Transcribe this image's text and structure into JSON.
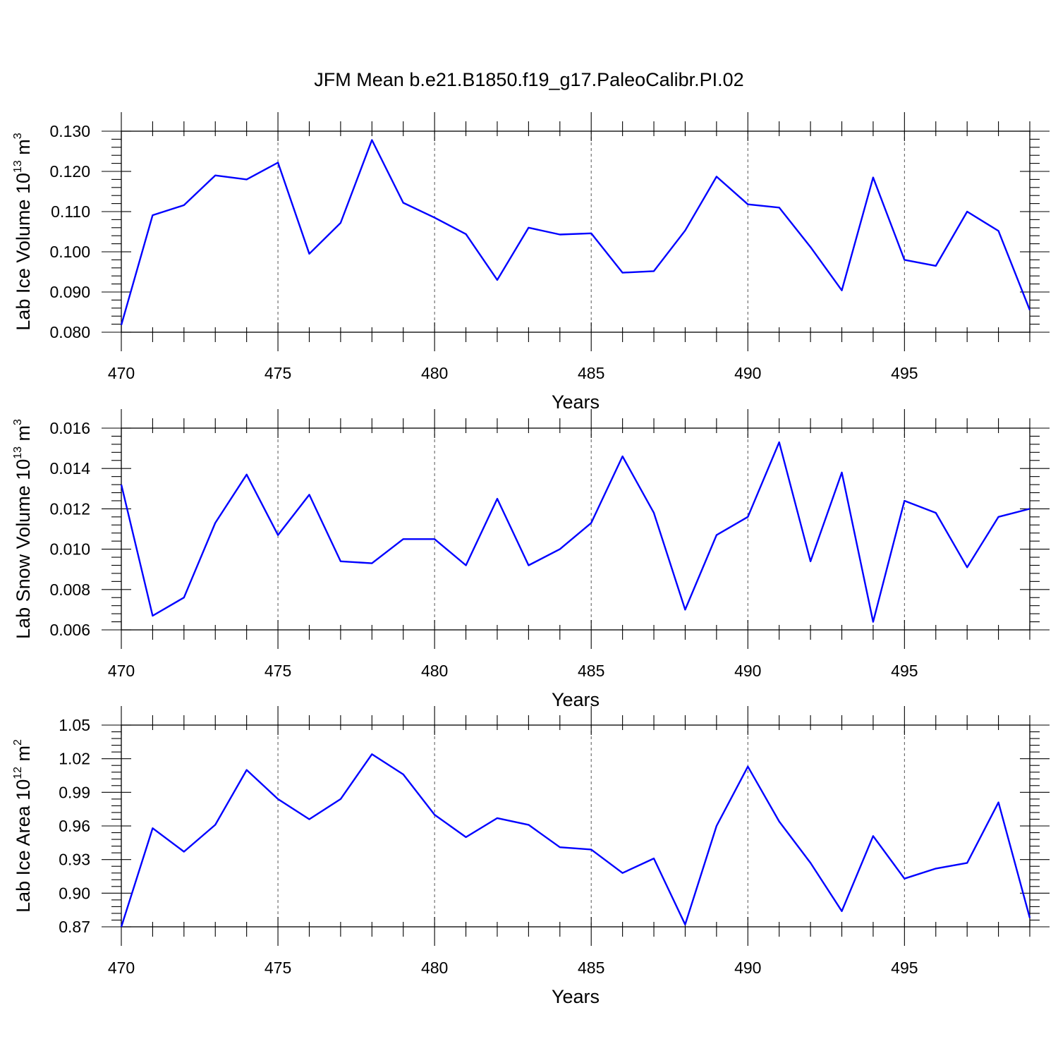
{
  "title": "JFM Mean b.e21.B1850.f19_g17.PaleoCalibr.PI.02",
  "colors": {
    "line": "#0000ff",
    "axes": "#000000",
    "grid": "#555555"
  },
  "chart_data": [
    {
      "type": "line",
      "ylabel": {
        "main": "Lab Ice Volume 10",
        "sup_exponent": "13",
        "unit": " m",
        "sup_unit": "3"
      },
      "xlabel": "Years",
      "xlim": [
        470,
        499
      ],
      "ylim": [
        0.08,
        0.13
      ],
      "xticks": [
        470,
        475,
        480,
        485,
        490,
        495
      ],
      "xtick_labels": [
        "470",
        "475",
        "480",
        "485",
        "490",
        "495"
      ],
      "yticks": [
        0.08,
        0.09,
        0.1,
        0.11,
        0.12,
        0.13
      ],
      "ytick_labels": [
        "0.080",
        "0.090",
        "0.100",
        "0.110",
        "0.120",
        "0.130"
      ],
      "grid": "vertical dashed at major x ticks",
      "x": [
        470,
        471,
        472,
        473,
        474,
        475,
        476,
        477,
        478,
        479,
        480,
        481,
        482,
        483,
        484,
        485,
        486,
        487,
        488,
        489,
        490,
        491,
        492,
        493,
        494,
        495,
        496,
        497,
        498,
        499
      ],
      "values": [
        0.0818,
        0.1091,
        0.1116,
        0.119,
        0.118,
        0.1222,
        0.0995,
        0.1072,
        0.1278,
        0.1122,
        0.1085,
        0.1044,
        0.093,
        0.106,
        0.1043,
        0.1046,
        0.0948,
        0.0952,
        0.1053,
        0.1187,
        0.1118,
        0.111,
        0.1012,
        0.0904,
        0.1185,
        0.098,
        0.0965,
        0.11,
        0.1052,
        0.0855
      ]
    },
    {
      "type": "line",
      "ylabel": {
        "main": "Lab Snow Volume 10",
        "sup_exponent": "13",
        "unit": " m",
        "sup_unit": "3"
      },
      "xlabel": "Years",
      "xlim": [
        470,
        499
      ],
      "ylim": [
        0.006,
        0.016
      ],
      "xticks": [
        470,
        475,
        480,
        485,
        490,
        495
      ],
      "xtick_labels": [
        "470",
        "475",
        "480",
        "485",
        "490",
        "495"
      ],
      "yticks": [
        0.006,
        0.008,
        0.01,
        0.012,
        0.014,
        0.016
      ],
      "ytick_labels": [
        "0.006",
        "0.008",
        "0.010",
        "0.012",
        "0.014",
        "0.016"
      ],
      "grid": "vertical dashed at major x ticks",
      "x": [
        470,
        471,
        472,
        473,
        474,
        475,
        476,
        477,
        478,
        479,
        480,
        481,
        482,
        483,
        484,
        485,
        486,
        487,
        488,
        489,
        490,
        491,
        492,
        493,
        494,
        495,
        496,
        497,
        498,
        499
      ],
      "values": [
        0.0132,
        0.0067,
        0.0076,
        0.0113,
        0.0137,
        0.0107,
        0.0127,
        0.0094,
        0.0093,
        0.0105,
        0.0105,
        0.0092,
        0.0125,
        0.0092,
        0.01,
        0.0113,
        0.0146,
        0.0118,
        0.007,
        0.0107,
        0.0116,
        0.0153,
        0.0094,
        0.0138,
        0.0064,
        0.0124,
        0.0118,
        0.0091,
        0.0116,
        0.012
      ]
    },
    {
      "type": "line",
      "ylabel": {
        "main": "Lab Ice Area 10",
        "sup_exponent": "12",
        "unit": " m",
        "sup_unit": "2"
      },
      "xlabel": "Years",
      "xlim": [
        470,
        499
      ],
      "ylim": [
        0.87,
        1.05
      ],
      "xticks": [
        470,
        475,
        480,
        485,
        490,
        495
      ],
      "xtick_labels": [
        "470",
        "475",
        "480",
        "485",
        "490",
        "495"
      ],
      "yticks": [
        0.87,
        0.9,
        0.93,
        0.96,
        0.99,
        1.02,
        1.05
      ],
      "ytick_labels": [
        "0.87",
        "0.90",
        "0.93",
        "0.96",
        "0.99",
        "1.02",
        "1.05"
      ],
      "grid": "vertical dashed at major x ticks",
      "x": [
        470,
        471,
        472,
        473,
        474,
        475,
        476,
        477,
        478,
        479,
        480,
        481,
        482,
        483,
        484,
        485,
        486,
        487,
        488,
        489,
        490,
        491,
        492,
        493,
        494,
        495,
        496,
        497,
        498,
        499
      ],
      "values": [
        0.87,
        0.958,
        0.937,
        0.961,
        1.01,
        0.984,
        0.966,
        0.984,
        1.024,
        1.006,
        0.97,
        0.95,
        0.967,
        0.961,
        0.941,
        0.939,
        0.918,
        0.931,
        0.872,
        0.96,
        1.013,
        0.964,
        0.927,
        0.884,
        0.951,
        0.913,
        0.922,
        0.927,
        0.981,
        0.878
      ]
    }
  ]
}
